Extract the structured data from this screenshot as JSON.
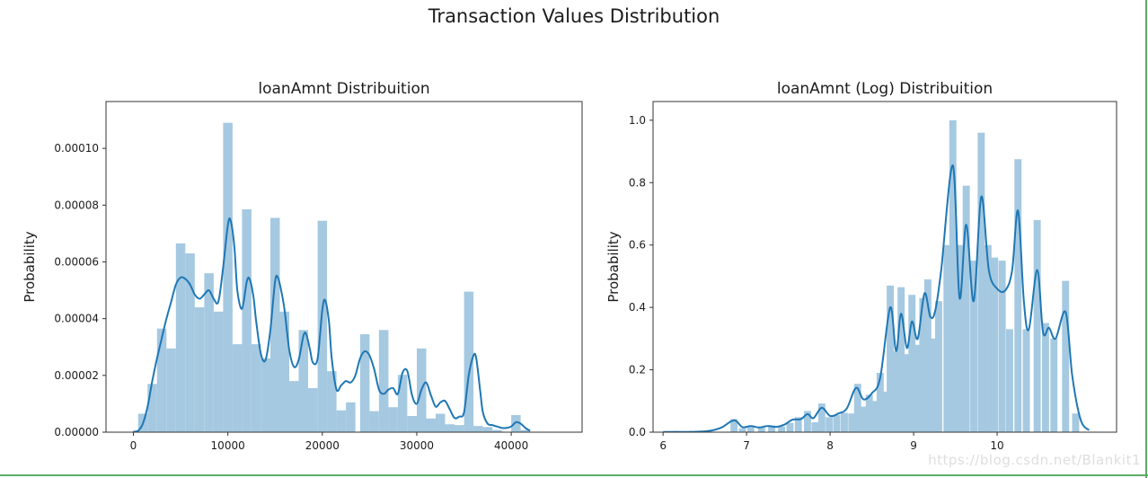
{
  "figure": {
    "title": "Transaction Values Distribution",
    "watermark": "https://blog.csdn.net/Blankit1",
    "background_color": "#ffffff",
    "border_color": "#5cad68",
    "text_color": "#1c1c1c"
  },
  "chart_data": [
    {
      "type": "bar",
      "subtype": "histogram-with-kde",
      "title": "loanAmnt Distribuition",
      "xlabel": "",
      "ylabel": "Probability",
      "legend": null,
      "grid": false,
      "bar_color": "#a5c9e1",
      "line_color": "#1f77b4",
      "xlim": [
        -2900,
        47500
      ],
      "ylim": [
        0,
        0.0001165
      ],
      "xticks": [
        0,
        10000,
        20000,
        30000,
        40000
      ],
      "xtick_labels": [
        "0",
        "10000",
        "20000",
        "30000",
        "40000"
      ],
      "yticks": [
        0,
        2e-05,
        4e-05,
        6e-05,
        8e-05,
        0.0001
      ],
      "ytick_labels": [
        "0.00000",
        "0.00002",
        "0.00004",
        "0.00006",
        "0.00008",
        "0.00010"
      ],
      "bin_width": 1000,
      "bars": [
        [
          1000,
          6.5e-06
        ],
        [
          2000,
          1.7e-05
        ],
        [
          3000,
          3.65e-05
        ],
        [
          4000,
          2.95e-05
        ],
        [
          5000,
          6.65e-05
        ],
        [
          6000,
          6.3e-05
        ],
        [
          7000,
          4.4e-05
        ],
        [
          8000,
          5.6e-05
        ],
        [
          9000,
          4.25e-05
        ],
        [
          10000,
          0.000109
        ],
        [
          11000,
          3.1e-05
        ],
        [
          12000,
          7.85e-05
        ],
        [
          13000,
          3.1e-05
        ],
        [
          14000,
          2.6e-05
        ],
        [
          15000,
          7.55e-05
        ],
        [
          16000,
          4.25e-05
        ],
        [
          17000,
          1.8e-05
        ],
        [
          18000,
          3.6e-05
        ],
        [
          19000,
          1.55e-05
        ],
        [
          20000,
          7.45e-05
        ],
        [
          21000,
          2.15e-05
        ],
        [
          22000,
          7.7e-06
        ],
        [
          23000,
          1.05e-05
        ],
        [
          24500,
          3.45e-05
        ],
        [
          25500,
          7.4e-06
        ],
        [
          26500,
          3.6e-05
        ],
        [
          27500,
          8.8e-06
        ],
        [
          28500,
          2.02e-05
        ],
        [
          29500,
          5.7e-06
        ],
        [
          30500,
          2.95e-05
        ],
        [
          31500,
          4.8e-06
        ],
        [
          32500,
          6.5e-06
        ],
        [
          33500,
          2.8e-06
        ],
        [
          34500,
          2.5e-06
        ],
        [
          35500,
          4.95e-05
        ],
        [
          36500,
          2.2e-06
        ],
        [
          37500,
          1.8e-06
        ],
        [
          38500,
          8e-07
        ],
        [
          40500,
          6e-06
        ],
        [
          41500,
          8e-07
        ]
      ],
      "kde": [
        [
          0,
          2e-07
        ],
        [
          500,
          5e-07
        ],
        [
          1000,
          3e-06
        ],
        [
          1500,
          9e-06
        ],
        [
          2000,
          1.8e-05
        ],
        [
          2500,
          2.6e-05
        ],
        [
          3000,
          3.3e-05
        ],
        [
          3500,
          4e-05
        ],
        [
          4000,
          4.6e-05
        ],
        [
          4500,
          5.2e-05
        ],
        [
          5000,
          5.45e-05
        ],
        [
          5500,
          5.4e-05
        ],
        [
          6000,
          5.2e-05
        ],
        [
          6500,
          4.85e-05
        ],
        [
          7000,
          4.7e-05
        ],
        [
          7500,
          4.85e-05
        ],
        [
          8000,
          5e-05
        ],
        [
          8500,
          4.7e-05
        ],
        [
          9000,
          4.6e-05
        ],
        [
          9500,
          5.8e-05
        ],
        [
          10000,
          7.3e-05
        ],
        [
          10300,
          7.45e-05
        ],
        [
          10700,
          6.5e-05
        ],
        [
          11000,
          5e-05
        ],
        [
          11500,
          4.35e-05
        ],
        [
          12000,
          5.3e-05
        ],
        [
          12300,
          5.4e-05
        ],
        [
          12700,
          4.8e-05
        ],
        [
          13000,
          3.9e-05
        ],
        [
          13500,
          2.75e-05
        ],
        [
          14000,
          2.55e-05
        ],
        [
          14500,
          3.6e-05
        ],
        [
          15000,
          5.3e-05
        ],
        [
          15300,
          5.45e-05
        ],
        [
          15700,
          4.9e-05
        ],
        [
          16000,
          4.3e-05
        ],
        [
          16500,
          2.9e-05
        ],
        [
          17000,
          2.3e-05
        ],
        [
          17500,
          2.55e-05
        ],
        [
          18000,
          3.4e-05
        ],
        [
          18300,
          3.45e-05
        ],
        [
          18700,
          2.9e-05
        ],
        [
          19000,
          2.45e-05
        ],
        [
          19500,
          2.6e-05
        ],
        [
          20000,
          4.3e-05
        ],
        [
          20300,
          4.65e-05
        ],
        [
          20700,
          3.9e-05
        ],
        [
          21000,
          2.6e-05
        ],
        [
          21500,
          1.5e-05
        ],
        [
          22000,
          1.65e-05
        ],
        [
          22500,
          1.8e-05
        ],
        [
          23000,
          1.75e-05
        ],
        [
          23500,
          2e-05
        ],
        [
          24000,
          2.6e-05
        ],
        [
          24500,
          2.85e-05
        ],
        [
          25000,
          2.7e-05
        ],
        [
          25500,
          2.2e-05
        ],
        [
          26000,
          1.5e-05
        ],
        [
          26500,
          1.35e-05
        ],
        [
          27000,
          1.5e-05
        ],
        [
          27500,
          1.55e-05
        ],
        [
          28000,
          1.35e-05
        ],
        [
          28500,
          2.1e-05
        ],
        [
          29000,
          2.15e-05
        ],
        [
          29500,
          1.3e-05
        ],
        [
          30000,
          1e-05
        ],
        [
          30500,
          1.5e-05
        ],
        [
          31000,
          1.75e-05
        ],
        [
          31500,
          1.3e-05
        ],
        [
          32000,
          9e-06
        ],
        [
          32500,
          1.05e-05
        ],
        [
          33000,
          1.1e-05
        ],
        [
          33500,
          8e-06
        ],
        [
          34000,
          5e-06
        ],
        [
          34500,
          5.5e-06
        ],
        [
          35000,
          7e-06
        ],
        [
          35500,
          2e-05
        ],
        [
          36000,
          2.7e-05
        ],
        [
          36300,
          2.6e-05
        ],
        [
          36700,
          1.5e-05
        ],
        [
          37000,
          7e-06
        ],
        [
          37500,
          3e-06
        ],
        [
          38000,
          2.5e-06
        ],
        [
          38500,
          2e-06
        ],
        [
          39000,
          1.5e-06
        ],
        [
          39500,
          1.5e-06
        ],
        [
          40000,
          2e-06
        ],
        [
          40500,
          3.5e-06
        ],
        [
          41000,
          3e-06
        ],
        [
          41500,
          1.5e-06
        ],
        [
          42000,
          5e-07
        ]
      ]
    },
    {
      "type": "bar",
      "subtype": "histogram-with-kde",
      "title": "loanAmnt (Log) Distribuition",
      "xlabel": "",
      "ylabel": "Probability",
      "legend": null,
      "grid": false,
      "bar_color": "#a5c9e1",
      "line_color": "#1f77b4",
      "xlim": [
        5.88,
        11.43
      ],
      "ylim": [
        0,
        1.06
      ],
      "xticks": [
        6,
        7,
        8,
        9,
        10
      ],
      "xtick_labels": [
        "6",
        "7",
        "8",
        "9",
        "10"
      ],
      "yticks": [
        0,
        0.2,
        0.4,
        0.6,
        0.8,
        1.0
      ],
      "ytick_labels": [
        "0.0",
        "0.2",
        "0.4",
        "0.6",
        "0.8",
        "1.0"
      ],
      "bin_width": 0.085,
      "bars": [
        [
          6.15,
          0.004
        ],
        [
          6.85,
          0.042
        ],
        [
          6.95,
          0.012
        ],
        [
          7.05,
          0.02
        ],
        [
          7.18,
          0.015
        ],
        [
          7.3,
          0.022
        ],
        [
          7.42,
          0.018
        ],
        [
          7.52,
          0.03
        ],
        [
          7.62,
          0.048
        ],
        [
          7.73,
          0.068
        ],
        [
          7.82,
          0.032
        ],
        [
          7.9,
          0.092
        ],
        [
          7.99,
          0.048
        ],
        [
          8.08,
          0.055
        ],
        [
          8.17,
          0.062
        ],
        [
          8.26,
          0.06
        ],
        [
          8.33,
          0.155
        ],
        [
          8.4,
          0.082
        ],
        [
          8.47,
          0.12
        ],
        [
          8.54,
          0.1
        ],
        [
          8.6,
          0.19
        ],
        [
          8.66,
          0.13
        ],
        [
          8.72,
          0.47
        ],
        [
          8.79,
          0.26
        ],
        [
          8.85,
          0.465
        ],
        [
          8.92,
          0.25
        ],
        [
          8.98,
          0.44
        ],
        [
          9.05,
          0.28
        ],
        [
          9.11,
          0.43
        ],
        [
          9.17,
          0.49
        ],
        [
          9.24,
          0.3
        ],
        [
          9.3,
          0.42
        ],
        [
          9.4,
          0.6
        ],
        [
          9.47,
          1.0
        ],
        [
          9.55,
          0.6
        ],
        [
          9.63,
          0.79
        ],
        [
          9.72,
          0.55
        ],
        [
          9.81,
          0.96
        ],
        [
          9.89,
          0.6
        ],
        [
          9.97,
          0.56
        ],
        [
          10.06,
          0.55
        ],
        [
          10.15,
          0.33
        ],
        [
          10.25,
          0.875
        ],
        [
          10.35,
          0.33
        ],
        [
          10.48,
          0.68
        ],
        [
          10.58,
          0.35
        ],
        [
          10.68,
          0.3
        ],
        [
          10.82,
          0.485
        ],
        [
          10.94,
          0.06
        ]
      ],
      "kde": [
        [
          6.0,
          0.001
        ],
        [
          6.3,
          0.001
        ],
        [
          6.55,
          0.004
        ],
        [
          6.7,
          0.015
        ],
        [
          6.85,
          0.038
        ],
        [
          6.95,
          0.016
        ],
        [
          7.05,
          0.02
        ],
        [
          7.15,
          0.015
        ],
        [
          7.25,
          0.02
        ],
        [
          7.35,
          0.017
        ],
        [
          7.45,
          0.024
        ],
        [
          7.55,
          0.04
        ],
        [
          7.65,
          0.042
        ],
        [
          7.73,
          0.058
        ],
        [
          7.8,
          0.045
        ],
        [
          7.9,
          0.078
        ],
        [
          8.0,
          0.052
        ],
        [
          8.1,
          0.06
        ],
        [
          8.2,
          0.076
        ],
        [
          8.31,
          0.142
        ],
        [
          8.4,
          0.105
        ],
        [
          8.5,
          0.125
        ],
        [
          8.6,
          0.175
        ],
        [
          8.72,
          0.4
        ],
        [
          8.79,
          0.26
        ],
        [
          8.85,
          0.38
        ],
        [
          8.92,
          0.27
        ],
        [
          8.98,
          0.355
        ],
        [
          9.05,
          0.3
        ],
        [
          9.13,
          0.445
        ],
        [
          9.2,
          0.37
        ],
        [
          9.26,
          0.39
        ],
        [
          9.33,
          0.52
        ],
        [
          9.47,
          0.855
        ],
        [
          9.55,
          0.43
        ],
        [
          9.63,
          0.665
        ],
        [
          9.72,
          0.42
        ],
        [
          9.81,
          0.755
        ],
        [
          9.9,
          0.52
        ],
        [
          10.0,
          0.46
        ],
        [
          10.1,
          0.455
        ],
        [
          10.18,
          0.52
        ],
        [
          10.25,
          0.71
        ],
        [
          10.32,
          0.42
        ],
        [
          10.38,
          0.33
        ],
        [
          10.48,
          0.52
        ],
        [
          10.55,
          0.32
        ],
        [
          10.62,
          0.335
        ],
        [
          10.7,
          0.3
        ],
        [
          10.82,
          0.385
        ],
        [
          10.9,
          0.18
        ],
        [
          11.0,
          0.04
        ],
        [
          11.1,
          0.006
        ]
      ]
    }
  ]
}
